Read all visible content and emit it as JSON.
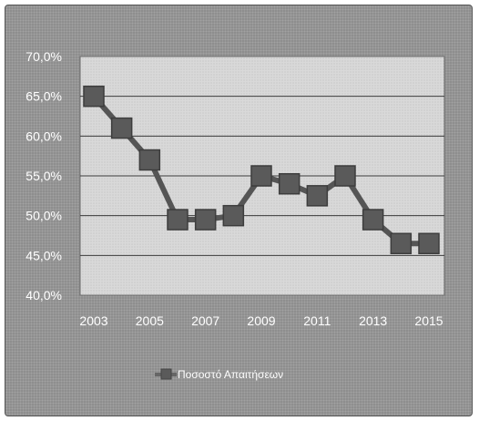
{
  "chart_data": {
    "type": "line",
    "x": [
      2003,
      2004,
      2005,
      2006,
      2007,
      2008,
      2009,
      2010,
      2011,
      2012,
      2013,
      2014,
      2015
    ],
    "series": [
      {
        "name": "Ποσοστό Απαιτήσεων",
        "values": [
          65.0,
          61.0,
          57.0,
          49.5,
          49.5,
          50.0,
          55.0,
          54.0,
          52.5,
          55.0,
          49.5,
          46.5,
          46.5
        ],
        "color": "#555555"
      }
    ],
    "x_tick_labels": [
      "2003",
      "2005",
      "2007",
      "2009",
      "2011",
      "2013",
      "2015"
    ],
    "y_tick_labels": [
      "40,0%",
      "45,0%",
      "50,0%",
      "55,0%",
      "60,0%",
      "65,0%",
      "70,0%"
    ],
    "ylim": [
      40,
      70
    ],
    "y_ticks": [
      40,
      45,
      50,
      55,
      60,
      65,
      70
    ],
    "grid": true,
    "legend_position": "bottom",
    "colors": {
      "outer_background": "#8e8e8e",
      "plot_background": "#d8d8d8",
      "gridline": "#3a3a3a",
      "marker": "#5a5a5a",
      "text": "#ffffff"
    }
  }
}
